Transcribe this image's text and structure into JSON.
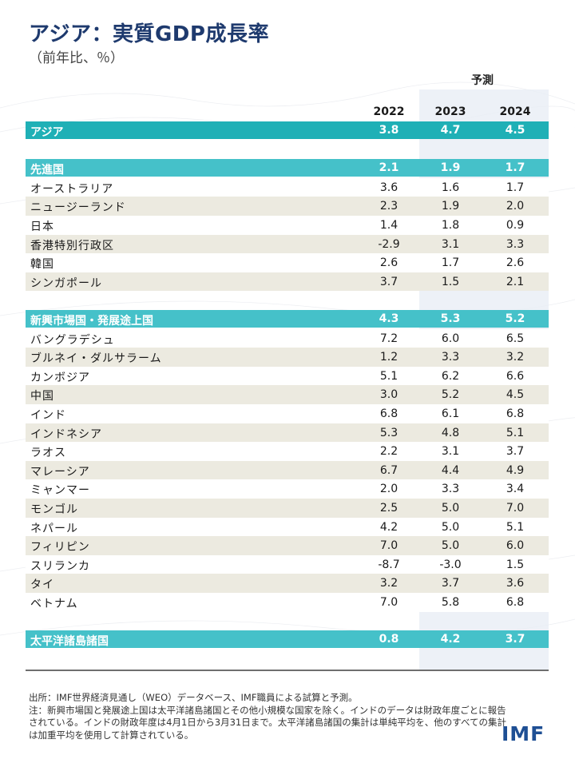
{
  "title": "アジア：実質GDP成長率",
  "subtitle": "（前年比、％）",
  "forecast_label": "予測",
  "years": [
    "2022",
    "2023",
    "2024"
  ],
  "rows": [
    {
      "label": "アジア",
      "v": [
        "3.8",
        "4.7",
        "4.5"
      ],
      "kind": "group-dark"
    },
    {
      "label": "",
      "v": [
        "",
        "",
        ""
      ],
      "kind": "spacer"
    },
    {
      "label": "先進国",
      "v": [
        "2.1",
        "1.9",
        "1.7"
      ],
      "kind": "group"
    },
    {
      "label": "オーストラリア",
      "v": [
        "3.6",
        "1.6",
        "1.7"
      ],
      "kind": "odd"
    },
    {
      "label": "ニュージーランド",
      "v": [
        "2.3",
        "1.9",
        "2.0"
      ],
      "kind": "even"
    },
    {
      "label": "日本",
      "v": [
        "1.4",
        "1.8",
        "0.9"
      ],
      "kind": "odd"
    },
    {
      "label": "香港特別行政区",
      "v": [
        "-2.9",
        "3.1",
        "3.3"
      ],
      "kind": "even"
    },
    {
      "label": "韓国",
      "v": [
        "2.6",
        "1.7",
        "2.6"
      ],
      "kind": "odd"
    },
    {
      "label": "シンガポール",
      "v": [
        "3.7",
        "1.5",
        "2.1"
      ],
      "kind": "even"
    },
    {
      "label": "",
      "v": [
        "",
        "",
        ""
      ],
      "kind": "spacer"
    },
    {
      "label": "新興市場国・発展途上国",
      "v": [
        "4.3",
        "5.3",
        "5.2"
      ],
      "kind": "group"
    },
    {
      "label": "バングラデシュ",
      "v": [
        "7.2",
        "6.0",
        "6.5"
      ],
      "kind": "odd"
    },
    {
      "label": "ブルネイ・ダルサラーム",
      "v": [
        "1.2",
        "3.3",
        "3.2"
      ],
      "kind": "even"
    },
    {
      "label": "カンボジア",
      "v": [
        "5.1",
        "6.2",
        "6.6"
      ],
      "kind": "odd"
    },
    {
      "label": "中国",
      "v": [
        "3.0",
        "5.2",
        "4.5"
      ],
      "kind": "even"
    },
    {
      "label": "インド",
      "v": [
        "6.8",
        "6.1",
        "6.8"
      ],
      "kind": "odd"
    },
    {
      "label": "インドネシア",
      "v": [
        "5.3",
        "4.8",
        "5.1"
      ],
      "kind": "even"
    },
    {
      "label": "ラオス",
      "v": [
        "2.2",
        "3.1",
        "3.7"
      ],
      "kind": "odd"
    },
    {
      "label": "マレーシア",
      "v": [
        "6.7",
        "4.4",
        "4.9"
      ],
      "kind": "even"
    },
    {
      "label": "ミャンマー",
      "v": [
        "2.0",
        "3.3",
        "3.4"
      ],
      "kind": "odd"
    },
    {
      "label": "モンゴル",
      "v": [
        "2.5",
        "5.0",
        "7.0"
      ],
      "kind": "even"
    },
    {
      "label": "ネパール",
      "v": [
        "4.2",
        "5.0",
        "5.1"
      ],
      "kind": "odd"
    },
    {
      "label": "フィリピン",
      "v": [
        "7.0",
        "5.0",
        "6.0"
      ],
      "kind": "even"
    },
    {
      "label": "スリランカ",
      "v": [
        "-8.7",
        "-3.0",
        "1.5"
      ],
      "kind": "odd"
    },
    {
      "label": "タイ",
      "v": [
        "3.2",
        "3.7",
        "3.6"
      ],
      "kind": "even"
    },
    {
      "label": "ベトナム",
      "v": [
        "7.0",
        "5.8",
        "6.8"
      ],
      "kind": "odd"
    },
    {
      "label": "",
      "v": [
        "",
        "",
        ""
      ],
      "kind": "spacer"
    },
    {
      "label": "太平洋諸島諸国",
      "v": [
        "0.8",
        "4.2",
        "3.7"
      ],
      "kind": "group"
    }
  ],
  "notes": [
    "出所：IMF世界経済見通し（WEO）データベース、IMF職員による試算と予測。",
    "注：新興市場国と発展途上国は太平洋諸島諸国とその他小規模な国家を除く。インドのデータは財政年度ごとに報告されている。インドの財政年度は4月1日から3月31日まで。太平洋諸島諸国の集計は単純平均を、他のすべての集計は加重平均を使用して計算されている。"
  ],
  "logo": "IMF",
  "chart_data": {
    "type": "table",
    "title": "アジア：実質GDP成長率",
    "subtitle": "（前年比、％）",
    "columns": [
      "2022",
      "2023",
      "2024"
    ],
    "forecast_columns": [
      "2023",
      "2024"
    ],
    "rows": [
      {
        "name": "アジア",
        "values": [
          3.8,
          4.7,
          4.5
        ]
      },
      {
        "name": "先進国",
        "values": [
          2.1,
          1.9,
          1.7
        ]
      },
      {
        "name": "オーストラリア",
        "values": [
          3.6,
          1.6,
          1.7
        ]
      },
      {
        "name": "ニュージーランド",
        "values": [
          2.3,
          1.9,
          2.0
        ]
      },
      {
        "name": "日本",
        "values": [
          1.4,
          1.8,
          0.9
        ]
      },
      {
        "name": "香港特別行政区",
        "values": [
          -2.9,
          3.1,
          3.3
        ]
      },
      {
        "name": "韓国",
        "values": [
          2.6,
          1.7,
          2.6
        ]
      },
      {
        "name": "シンガポール",
        "values": [
          3.7,
          1.5,
          2.1
        ]
      },
      {
        "name": "新興市場国・発展途上国",
        "values": [
          4.3,
          5.3,
          5.2
        ]
      },
      {
        "name": "バングラデシュ",
        "values": [
          7.2,
          6.0,
          6.5
        ]
      },
      {
        "name": "ブルネイ・ダルサラーム",
        "values": [
          1.2,
          3.3,
          3.2
        ]
      },
      {
        "name": "カンボジア",
        "values": [
          5.1,
          6.2,
          6.6
        ]
      },
      {
        "name": "中国",
        "values": [
          3.0,
          5.2,
          4.5
        ]
      },
      {
        "name": "インド",
        "values": [
          6.8,
          6.1,
          6.8
        ]
      },
      {
        "name": "インドネシア",
        "values": [
          5.3,
          4.8,
          5.1
        ]
      },
      {
        "name": "ラオス",
        "values": [
          2.2,
          3.1,
          3.7
        ]
      },
      {
        "name": "マレーシア",
        "values": [
          6.7,
          4.4,
          4.9
        ]
      },
      {
        "name": "ミャンマー",
        "values": [
          2.0,
          3.3,
          3.4
        ]
      },
      {
        "name": "モンゴル",
        "values": [
          2.5,
          5.0,
          7.0
        ]
      },
      {
        "name": "ネパール",
        "values": [
          4.2,
          5.0,
          5.1
        ]
      },
      {
        "name": "フィリピン",
        "values": [
          7.0,
          5.0,
          6.0
        ]
      },
      {
        "name": "スリランカ",
        "values": [
          -8.7,
          -3.0,
          1.5
        ]
      },
      {
        "name": "タイ",
        "values": [
          3.2,
          3.7,
          3.6
        ]
      },
      {
        "name": "ベトナム",
        "values": [
          7.0,
          5.8,
          6.8
        ]
      },
      {
        "name": "太平洋諸島諸国",
        "values": [
          0.8,
          4.2,
          3.7
        ]
      }
    ]
  }
}
